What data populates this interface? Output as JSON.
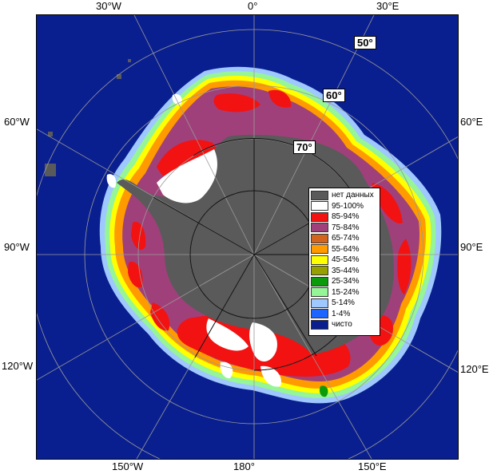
{
  "longitude_labels": {
    "top": [
      "30°W",
      "0°",
      "30°E"
    ],
    "left": [
      "60°W",
      "90°W",
      "120°W"
    ],
    "right": [
      "60°E",
      "90°E",
      "120°E"
    ],
    "bottom": [
      "150°W",
      "180°",
      "150°E"
    ]
  },
  "latitude_labels": [
    "50°",
    "60°",
    "70°"
  ],
  "legend": {
    "items": [
      {
        "label": "нет данных",
        "color": "#5a5a5a"
      },
      {
        "label": "95-100%",
        "color": "#ffffff"
      },
      {
        "label": "85-94%",
        "color": "#f21212"
      },
      {
        "label": "75-84%",
        "color": "#a0407a"
      },
      {
        "label": "65-74%",
        "color": "#d2641e"
      },
      {
        "label": "55-64%",
        "color": "#ff9a00"
      },
      {
        "label": "45-54%",
        "color": "#ffff00"
      },
      {
        "label": "35-44%",
        "color": "#96a000"
      },
      {
        "label": "25-34%",
        "color": "#0a9a0a"
      },
      {
        "label": "15-24%",
        "color": "#96f596"
      },
      {
        "label": "5-14%",
        "color": "#9ec8ff"
      },
      {
        "label": "1-4%",
        "color": "#1e64ff"
      },
      {
        "label": "чисто",
        "color": "#0a1f8f"
      }
    ]
  }
}
